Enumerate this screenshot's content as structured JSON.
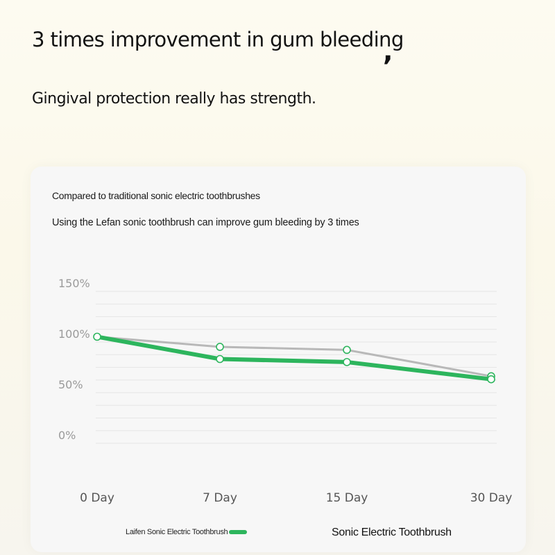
{
  "header": {
    "title": "3 times improvement in gum bleeding",
    "title_punct": ",",
    "subtitle": "Gingival protection really has strength."
  },
  "card": {
    "line1": "Compared to traditional sonic electric toothbrushes",
    "line2": "Using the Lefan sonic toothbrush can improve gum bleeding by 3 times"
  },
  "chart_data": {
    "type": "line",
    "categories": [
      "0 Day",
      "7 Day",
      "15 Day",
      "30 Day"
    ],
    "y_ticks": [
      "150%",
      "100%",
      "50%",
      "0%"
    ],
    "ylim": [
      0,
      150
    ],
    "grid": true,
    "legend_position": "bottom",
    "series": [
      {
        "name": "Laifen Sonic Electric Toothbrush",
        "values": [
          97,
          75,
          72,
          55
        ],
        "color": "#2db55d"
      },
      {
        "name": "Sonic Electric Toothbrush",
        "values": [
          97,
          87,
          84,
          58
        ],
        "color": "#b8b8b8"
      }
    ],
    "colors": {
      "marker_fill": "#ffffff",
      "grid": "#e6e6e6",
      "tick_text": "#9a9a9a",
      "category_text": "#555555"
    }
  }
}
